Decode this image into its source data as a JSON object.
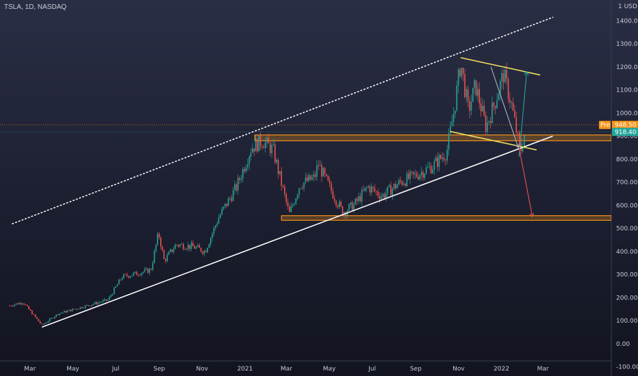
{
  "header": {
    "symbol": "TSLA, 1D, NASDAQ"
  },
  "chart_data": {
    "type": "candlestick",
    "currency": "USD",
    "y_ticks": [
      1400,
      1300,
      1200,
      1100,
      1000,
      900,
      800,
      700,
      600,
      500,
      400,
      300,
      200,
      100,
      0,
      -100
    ],
    "x_ticks": [
      "Mar",
      "May",
      "Jul",
      "Sep",
      "Nov",
      "2021",
      "Mar",
      "May",
      "Jul",
      "Sep",
      "Nov",
      "2022",
      "Mar"
    ],
    "ylim": [
      -140,
      1490
    ],
    "price_markers": [
      {
        "label": "Pre",
        "value": "948.50",
        "color": "#f7931a"
      },
      {
        "value": "918.40",
        "color": "#26a69a"
      }
    ],
    "trendlines": [
      {
        "name": "rising support",
        "from": [
          "2020-03-18",
          72
        ],
        "to": [
          "2022-03-15",
          900
        ],
        "color": "#ffffff",
        "style": "solid"
      },
      {
        "name": "upper channel",
        "from": [
          "2020-02-05",
          520
        ],
        "to": [
          "2022-03-15",
          1415
        ],
        "color": "#ffffff",
        "style": "dotted"
      },
      {
        "name": "wedge top",
        "from": [
          "2021-11-04",
          1240
        ],
        "to": [
          "2022-02-25",
          1165
        ],
        "color": "#f2e15f",
        "style": "solid"
      },
      {
        "name": "wedge bottom",
        "from": [
          "2021-10-20",
          920
        ],
        "to": [
          "2022-02-20",
          840
        ],
        "color": "#f2e15f",
        "style": "solid"
      }
    ],
    "zones": [
      {
        "from": "2021-01-15",
        "to": "2022-03-31",
        "low": 880,
        "high": 905,
        "color": "#f7931a"
      },
      {
        "from": "2021-02-22",
        "to": "2022-03-31",
        "low": 535,
        "high": 555,
        "color": "#f7931a"
      }
    ],
    "projections": [
      {
        "path": [
          [
            "2022-01-26",
            810
          ],
          [
            "2022-02-06",
            1180
          ]
        ],
        "color": "#26a69a"
      },
      {
        "path": [
          [
            "2022-01-26",
            850
          ],
          [
            "2022-02-14",
            550
          ]
        ],
        "color": "#ef5350"
      },
      {
        "path": [
          [
            "2021-12-17",
            1200
          ],
          [
            "2022-01-25",
            850
          ]
        ],
        "color": "#b0b4c0"
      }
    ],
    "candle_color_up": "#26a69a",
    "candle_color_down": "#ef5350"
  }
}
